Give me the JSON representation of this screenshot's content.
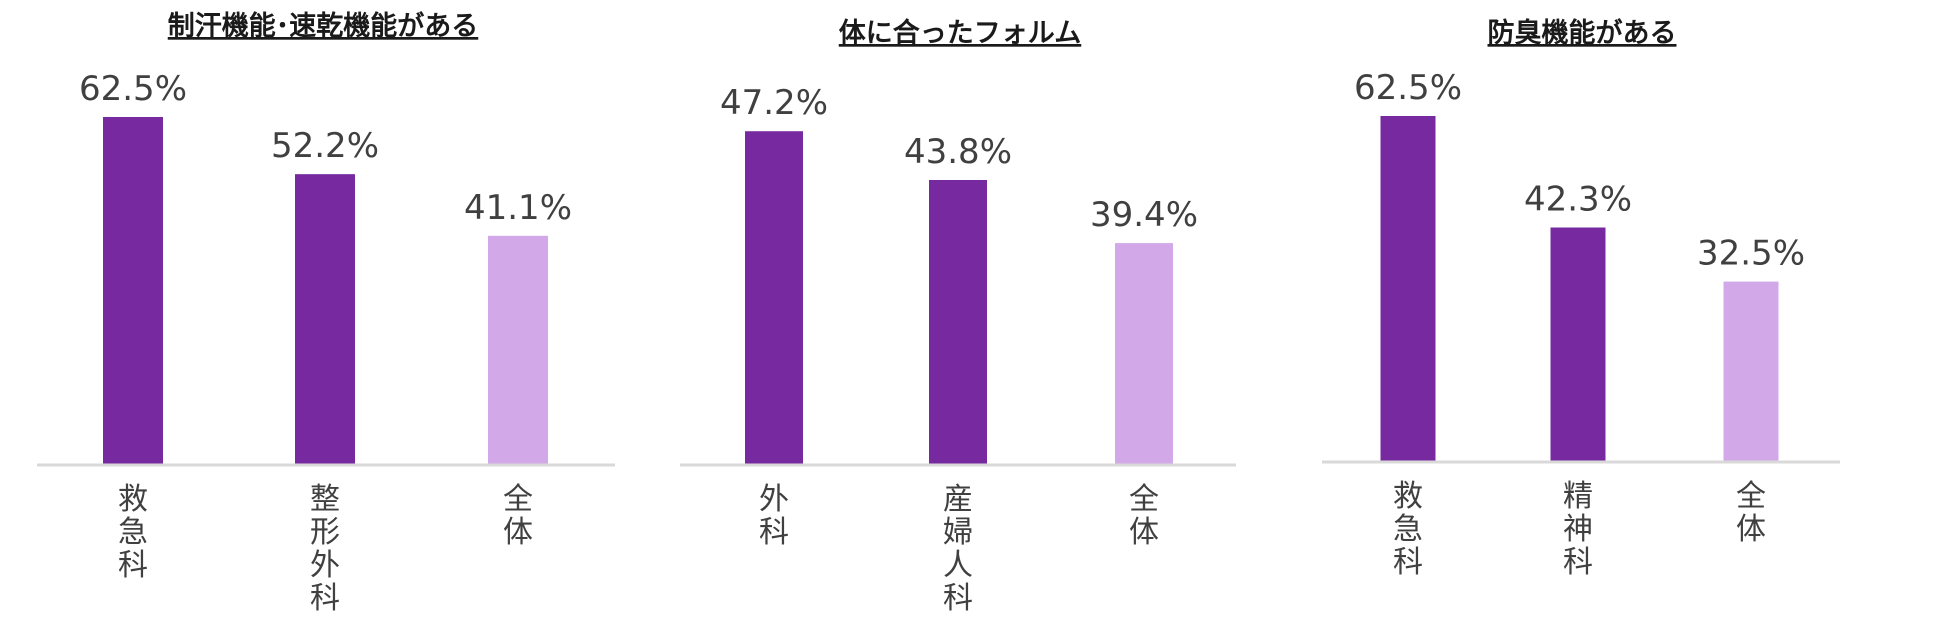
{
  "colors": {
    "highlight": "#772aa0",
    "overall": "#d2a8e8",
    "axis": "#d9d9d9",
    "text": "#404040",
    "title": "#1a1a1a"
  },
  "chart_data": [
    {
      "type": "bar",
      "title": "制汗機能･速乾機能がある",
      "categories": [
        "救急科",
        "整形外科",
        "全体"
      ],
      "values": [
        62.5,
        52.2,
        41.1
      ],
      "value_labels": [
        "62.5%",
        "52.2%",
        "41.1%"
      ],
      "bar_colors": [
        "highlight",
        "highlight",
        "overall"
      ],
      "unit": "%",
      "ylim": [
        0,
        67
      ],
      "grid": false,
      "category_orientation": "vertical"
    },
    {
      "type": "bar",
      "title": "体に合ったフォルム",
      "categories": [
        "外科",
        "産婦人科",
        "全体"
      ],
      "values": [
        47.2,
        43.8,
        39.4
      ],
      "value_labels": [
        "47.2%",
        "43.8%",
        "39.4%"
      ],
      "bar_colors": [
        "highlight",
        "highlight",
        "overall"
      ],
      "unit": "%",
      "ylim": [
        24,
        48.4
      ],
      "grid": false,
      "category_orientation": "vertical"
    },
    {
      "type": "bar",
      "title": "防臭機能がある",
      "categories": [
        "救急科",
        "精神科",
        "全体"
      ],
      "values": [
        62.5,
        42.3,
        32.5
      ],
      "value_labels": [
        "62.5%",
        "42.3%",
        "32.5%"
      ],
      "bar_colors": [
        "highlight",
        "highlight",
        "overall"
      ],
      "unit": "%",
      "ylim": [
        0,
        62.5
      ],
      "grid": false,
      "category_orientation": "vertical"
    }
  ]
}
